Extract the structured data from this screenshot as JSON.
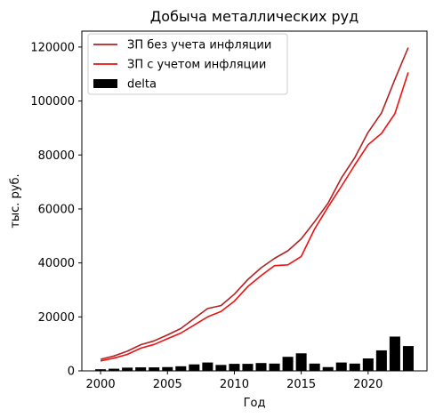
{
  "chart_data": {
    "type": "line",
    "title": "Добыча металлических руд",
    "xlabel": "Год",
    "ylabel": "тыс. руб.",
    "xlim": [
      1998.6,
      2024.4
    ],
    "ylim": [
      0,
      125900
    ],
    "x_ticks": [
      2000,
      2005,
      2010,
      2015,
      2020
    ],
    "y_ticks": [
      0,
      20000,
      40000,
      60000,
      80000,
      100000,
      120000
    ],
    "x": [
      2000,
      2001,
      2002,
      2003,
      2004,
      2005,
      2006,
      2007,
      2008,
      2009,
      2010,
      2011,
      2012,
      2013,
      2014,
      2015,
      2016,
      2017,
      2018,
      2019,
      2020,
      2021,
      2022,
      2023
    ],
    "series": [
      {
        "name": "ЗП без учета инфляции",
        "kind": "line",
        "color": "#b22222",
        "values": [
          4300,
          5500,
          7300,
          9700,
          11100,
          13300,
          15700,
          19400,
          23100,
          24200,
          28400,
          33800,
          38200,
          41700,
          44500,
          48900,
          55300,
          62100,
          71500,
          79000,
          88400,
          95600,
          108000,
          119800
        ]
      },
      {
        "name": "ЗП с учетом инфляции",
        "kind": "line",
        "color": "#ee1111",
        "values": [
          3700,
          4700,
          6100,
          8400,
          9800,
          11900,
          14000,
          17000,
          20000,
          22000,
          25800,
          31200,
          35300,
          39000,
          39300,
          42400,
          52600,
          60700,
          68400,
          76300,
          83800,
          88000,
          95300,
          110600
        ]
      },
      {
        "name": "delta",
        "kind": "bar",
        "color": "#000000",
        "values": [
          600,
          800,
          1200,
          1300,
          1300,
          1400,
          1700,
          2400,
          3100,
          2200,
          2600,
          2600,
          2900,
          2700,
          5200,
          6500,
          2700,
          1400,
          3100,
          2700,
          4600,
          7600,
          12700,
          9200
        ]
      }
    ],
    "legend_position": "upper-left",
    "grid": false
  }
}
